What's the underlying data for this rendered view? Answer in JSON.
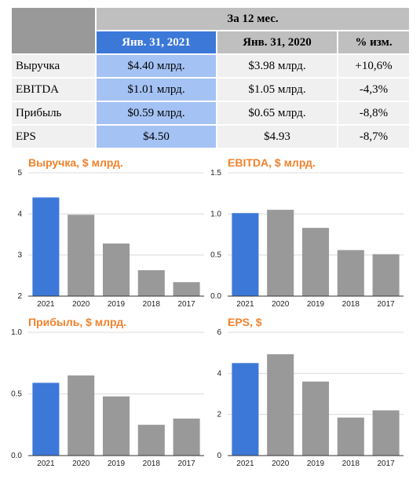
{
  "table": {
    "period_header": "За 12 мес.",
    "columns": [
      "Янв. 31, 2021",
      "Янв. 31, 2020",
      "% изм."
    ],
    "rows": [
      {
        "label": "Выручка",
        "current": "$4.40 млрд.",
        "previous": "$3.98 млрд.",
        "change": "+10,6%"
      },
      {
        "label": "EBITDA",
        "current": "$1.01 млрд.",
        "previous": "$1.05 млрд.",
        "change": "-4,3%"
      },
      {
        "label": "Прибыль",
        "current": "$0.59 млрд.",
        "previous": "$0.65 млрд.",
        "change": "-8,8%"
      },
      {
        "label": "EPS",
        "current": "$4.50",
        "previous": "$4.93",
        "change": "-8,7%"
      }
    ]
  },
  "colors": {
    "highlight": "#3c78d8",
    "bar": "#999999",
    "title": "#f0822d"
  },
  "chart_data": [
    {
      "type": "bar",
      "title": "Выручка, $ млрд.",
      "categories": [
        "2021",
        "2020",
        "2019",
        "2018",
        "2017"
      ],
      "values": [
        4.4,
        3.98,
        3.28,
        2.63,
        2.34
      ],
      "ylim": [
        2,
        5
      ],
      "yticks": [
        2,
        3,
        4,
        5
      ],
      "ytick_labels": [
        "2",
        "3",
        "4",
        "5"
      ],
      "grid": true,
      "highlight_index": 0
    },
    {
      "type": "bar",
      "title": "EBITDA, $ млрд.",
      "categories": [
        "2021",
        "2020",
        "2019",
        "2018",
        "2017"
      ],
      "values": [
        1.01,
        1.05,
        0.83,
        0.56,
        0.51
      ],
      "ylim": [
        0,
        1.5
      ],
      "yticks": [
        0,
        0.5,
        1.0,
        1.5
      ],
      "ytick_labels": [
        "0.0",
        "0.5",
        "1.0",
        "1.5"
      ],
      "grid": true,
      "highlight_index": 0
    },
    {
      "type": "bar",
      "title": "Прибыль, $ млрд.",
      "categories": [
        "2021",
        "2020",
        "2019",
        "2018",
        "2017"
      ],
      "values": [
        0.59,
        0.65,
        0.48,
        0.25,
        0.3
      ],
      "ylim": [
        0,
        1.0
      ],
      "yticks": [
        0,
        0.5,
        1.0
      ],
      "ytick_labels": [
        "0.0",
        "0.5",
        "1.0"
      ],
      "grid": true,
      "highlight_index": 0
    },
    {
      "type": "bar",
      "title": "EPS, $",
      "categories": [
        "2021",
        "2020",
        "2019",
        "2018",
        "2017"
      ],
      "values": [
        4.5,
        4.93,
        3.6,
        1.85,
        2.2
      ],
      "ylim": [
        0,
        6
      ],
      "yticks": [
        0,
        2,
        4,
        6
      ],
      "ytick_labels": [
        "0",
        "2",
        "4",
        "6"
      ],
      "grid": true,
      "highlight_index": 0
    }
  ]
}
